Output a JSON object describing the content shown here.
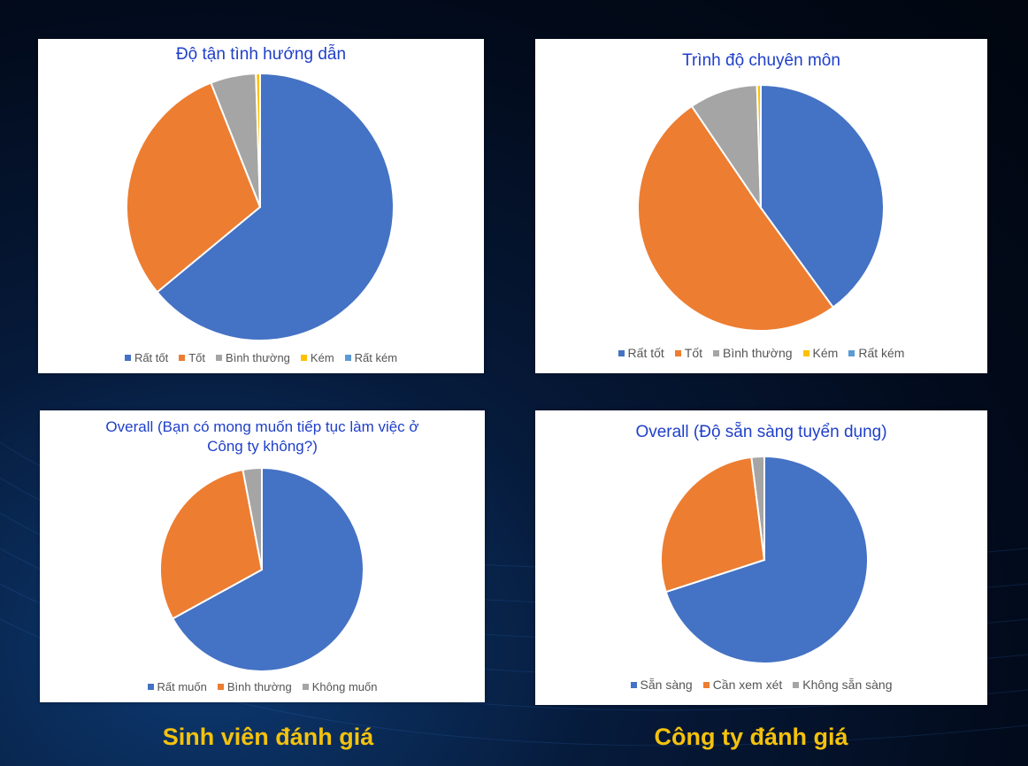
{
  "colors": {
    "blue": "#4472c4",
    "orange": "#ed7d31",
    "gray": "#a5a5a5",
    "yellow": "#ffc000",
    "lightblue": "#5b9bd5",
    "title": "#1f3fc9",
    "footer": "#f4c20d"
  },
  "footer": {
    "left": "Sinh viên đánh giá",
    "right": "Công ty đánh giá"
  },
  "chart_data": [
    {
      "type": "pie",
      "title": "Độ tận tình hướng dẫn",
      "categories": [
        "Rất tốt",
        "Tốt",
        "Bình thường",
        "Kém",
        "Rất kém"
      ],
      "values": [
        64,
        30,
        5.5,
        0.5,
        0
      ],
      "legend_position": "bottom"
    },
    {
      "type": "pie",
      "title": "Trình độ chuyên môn",
      "categories": [
        "Rất tốt",
        "Tốt",
        "Bình thường",
        "Kém",
        "Rất kém"
      ],
      "values": [
        40,
        50.5,
        9,
        0.5,
        0
      ],
      "legend_position": "bottom"
    },
    {
      "type": "pie",
      "title": "Overall (Bạn có mong muốn tiếp tục làm việc ở Công ty không?)",
      "categories": [
        "Rất muốn",
        "Bình thường",
        "Không muốn"
      ],
      "values": [
        67,
        30,
        3
      ],
      "legend_position": "bottom"
    },
    {
      "type": "pie",
      "title": "Overall (Độ sẵn sàng tuyển dụng)",
      "categories": [
        "Sẵn sàng",
        "Cần xem xét",
        "Không sẵn sàng"
      ],
      "values": [
        70,
        28,
        2
      ],
      "legend_position": "bottom"
    }
  ]
}
